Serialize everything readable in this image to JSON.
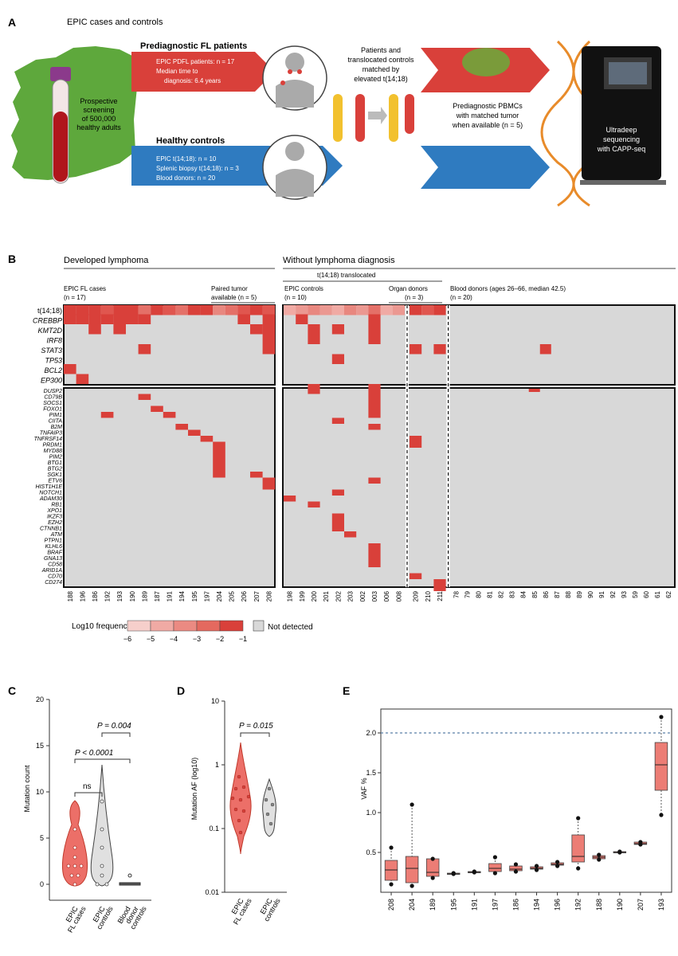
{
  "panelA": {
    "label": "A",
    "title": "EPIC cases and controls",
    "screening": [
      "Prospective",
      "screening",
      "of 500,000",
      "healthy adults"
    ],
    "fl_title": "Prediagnostic FL patients",
    "fl_lines": [
      "EPIC PDFL patients: n = 17",
      "Median time to",
      "diagnosis: 6.4 years"
    ],
    "hc_title": "Healthy controls",
    "hc_lines": [
      "EPIC t(14;18): n = 10",
      "Splenic biopsy t(14;18): n = 3",
      "Blood donors: n = 20"
    ],
    "match_text": [
      "Patients and",
      "translocated controls",
      "matched by",
      "elevated t(14;18)"
    ],
    "pbmc_text": [
      "Prediagnostic PBMCs",
      "with matched tumor",
      "when available (n = 5)"
    ],
    "seq_text": [
      "Ultradeep",
      "sequencing",
      "with CAPP-seq"
    ]
  },
  "panelB": {
    "label": "B",
    "developed": "Developed lymphoma",
    "without": "Without lymphoma diagnosis",
    "translocated": "t(14;18) translocated",
    "epic_fl": "EPIC FL cases",
    "epic_fl_n": "(n = 17)",
    "paired": "Paired tumor",
    "paired_n": "available (n = 5)",
    "epic_controls": "EPIC controls",
    "epic_controls_n": "(n = 10)",
    "organ": "Organ donors",
    "organ_n": "(n = 3)",
    "blood": "Blood donors (ages 26–66, median 42.5)",
    "blood_n": "(n = 20)",
    "top_genes": [
      "t(14;18)",
      "CREBBP",
      "KMT2D",
      "IRF8",
      "STAT3",
      "TP53",
      "BCL2",
      "EP300"
    ],
    "lower_genes": [
      "DUSP2",
      "CD79B",
      "SOCS1",
      "FOXO1",
      "PIM1",
      "CIITA",
      "B2M",
      "TNFAIP3",
      "TNFRSF14",
      "PRDM1",
      "MYD88",
      "PIM2",
      "BTG1",
      "BTG2",
      "SGK1",
      "ETV6",
      "HIST1H1E",
      "NOTCH1",
      "ADAM30",
      "RB1",
      "XPO1",
      "IKZF3",
      "EZH2",
      "CTNNB1",
      "ATM",
      "PTPN1",
      "KLHL6",
      "BRAF",
      "GNA13",
      "CD58",
      "ARID1A",
      "CD70",
      "CD274"
    ],
    "samples_fl": [
      "188",
      "196",
      "186",
      "192",
      "193",
      "190",
      "189",
      "187",
      "191",
      "194",
      "195",
      "197",
      "204",
      "205",
      "206",
      "207",
      "208"
    ],
    "samples_ec": [
      "198",
      "199",
      "200",
      "201",
      "202",
      "203",
      "002",
      "003",
      "006",
      "008"
    ],
    "samples_od": [
      "209",
      "210",
      "211"
    ],
    "samples_bd": [
      "78",
      "79",
      "80",
      "81",
      "82",
      "83",
      "84",
      "85",
      "86",
      "87",
      "88",
      "89",
      "90",
      "91",
      "92",
      "93",
      "59",
      "60",
      "61",
      "62"
    ],
    "legend_label": "Log10 frequency",
    "legend_ticks": [
      "−6",
      "−5",
      "−4",
      "−3",
      "−2",
      "−1"
    ],
    "not_detected": "Not detected"
  },
  "panelC": {
    "label": "C",
    "ylabel": "Mutation count",
    "yticks": [
      "0",
      "5",
      "10",
      "15",
      "20"
    ],
    "groups": [
      "EPIC FL cases",
      "EPIC controls",
      "Blood donor controls"
    ],
    "p1": "P < 0.0001",
    "p2": "P = 0.004",
    "ns": "ns"
  },
  "panelD": {
    "label": "D",
    "ylabel": "Mutation AF (log10)",
    "yticks": [
      "10",
      "1",
      "0.1",
      "0.01"
    ],
    "groups": [
      "EPIC FL cases",
      "EPIC controls"
    ],
    "p": "P = 0.015"
  },
  "chart_data": {
    "type": "box",
    "panel": "E",
    "ylabel": "VAF %",
    "ylim": [
      0,
      2.3
    ],
    "yticks": [
      "0.5",
      "1.0",
      "1.5",
      "2.0"
    ],
    "threshold": 2.0,
    "categories": [
      "208",
      "204",
      "189",
      "195",
      "191",
      "197",
      "186",
      "194",
      "196",
      "192",
      "188",
      "190",
      "207",
      "193"
    ],
    "median": [
      0.28,
      0.3,
      0.25,
      0.23,
      0.25,
      0.3,
      0.29,
      0.3,
      0.35,
      0.45,
      0.44,
      0.5,
      0.61,
      1.6
    ],
    "q1": [
      0.15,
      0.12,
      0.2,
      0.23,
      0.25,
      0.26,
      0.27,
      0.29,
      0.34,
      0.38,
      0.42,
      0.5,
      0.6,
      1.28
    ],
    "q3": [
      0.4,
      0.45,
      0.42,
      0.24,
      0.26,
      0.36,
      0.33,
      0.32,
      0.37,
      0.72,
      0.46,
      0.51,
      0.63,
      1.88
    ],
    "min": [
      0.1,
      0.08,
      0.18,
      0.23,
      0.25,
      0.24,
      0.26,
      0.28,
      0.33,
      0.3,
      0.41,
      0.5,
      0.6,
      0.97
    ],
    "max": [
      0.56,
      1.1,
      0.42,
      0.24,
      0.26,
      0.44,
      0.35,
      0.33,
      0.38,
      0.93,
      0.47,
      0.51,
      0.63,
      2.2
    ]
  },
  "colors": {
    "red": "#d9403a",
    "blue": "#2f7bc0",
    "green": "#5ea83c",
    "gray": "#d8d8d8",
    "boxfill": "#ec7d75"
  }
}
